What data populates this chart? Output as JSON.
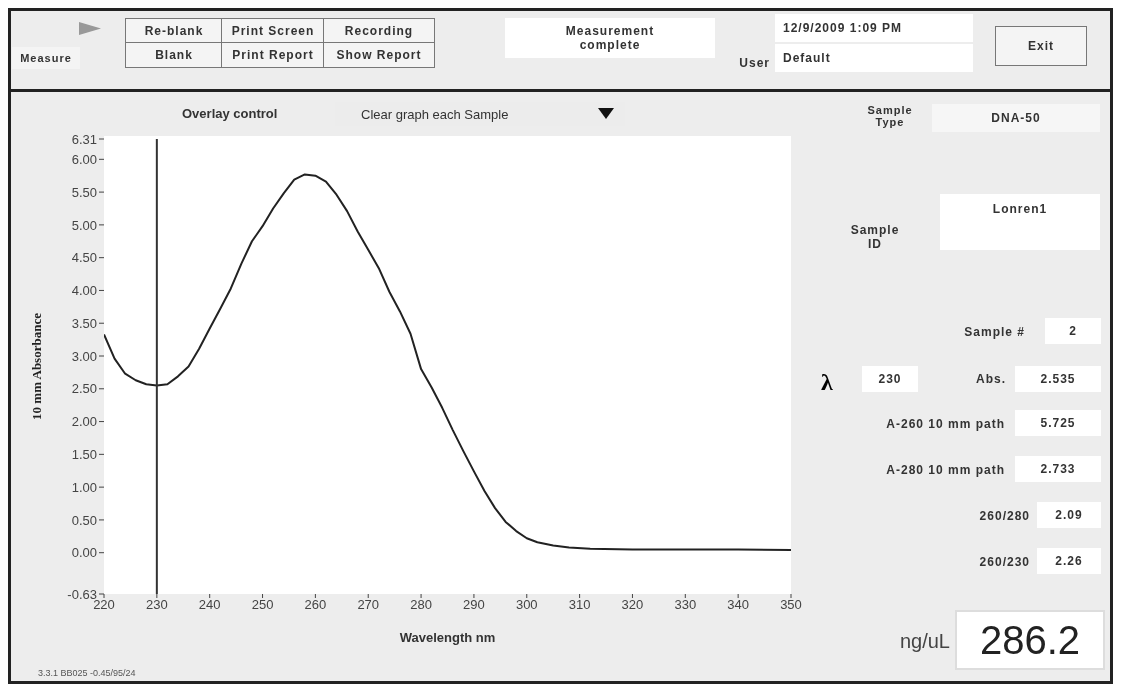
{
  "chart_data": [
    {
      "type": "line",
      "xlabel": "Wavelength nm",
      "ylabel": "10 mm Absorbance",
      "annotations": [
        "Overlay control",
        "Clear graph each Sample",
        "3.3.1 BB025 -0.45/95/24"
      ],
      "xlim": [
        220,
        350
      ],
      "xticks": [
        220,
        230,
        240,
        250,
        260,
        270,
        280,
        290,
        300,
        310,
        320,
        330,
        340,
        350
      ],
      "ylim": [
        -0.63,
        6.31
      ],
      "yticks": [
        {
          "value": -0.63,
          "label": "-0.63"
        },
        {
          "value": 0,
          "label": "0.00"
        },
        {
          "value": 0.5,
          "label": "0.50"
        },
        {
          "value": 1,
          "label": "1.00"
        },
        {
          "value": 1.5,
          "label": "1.50"
        },
        {
          "value": 2,
          "label": "2.00"
        },
        {
          "value": 2.5,
          "label": "2.50"
        },
        {
          "value": 3,
          "label": "3.00"
        },
        {
          "value": 3.5,
          "label": "3.50"
        },
        {
          "value": 4,
          "label": "4.00"
        },
        {
          "value": 4.5,
          "label": "4.50"
        },
        {
          "value": 5,
          "label": "5.00"
        },
        {
          "value": 5.5,
          "label": "5.50"
        },
        {
          "value": 6,
          "label": "6.00"
        },
        {
          "value": 6.31,
          "label": "6.31"
        }
      ],
      "grid": false,
      "ref_lines": [
        {
          "axis": "x",
          "value": 230,
          "color": "#333333"
        }
      ],
      "series": [
        {
          "color": "#222222",
          "x": [
            220,
            222,
            224,
            226,
            228,
            230,
            232,
            234,
            236,
            238,
            240,
            242,
            244,
            246,
            248,
            250,
            252,
            254,
            256,
            258,
            260,
            262,
            264,
            266,
            268,
            270,
            272,
            274,
            276,
            278,
            280,
            282,
            284,
            286,
            288,
            290,
            292,
            294,
            296,
            298,
            300,
            302,
            305,
            308,
            312,
            320,
            330,
            340,
            350
          ],
          "values": [
            3.33,
            2.96,
            2.73,
            2.63,
            2.57,
            2.55,
            2.57,
            2.69,
            2.84,
            3.11,
            3.42,
            3.72,
            4.03,
            4.41,
            4.75,
            4.98,
            5.25,
            5.48,
            5.69,
            5.77,
            5.75,
            5.66,
            5.46,
            5.21,
            4.9,
            4.62,
            4.34,
            3.98,
            3.68,
            3.34,
            2.8,
            2.52,
            2.21,
            1.87,
            1.55,
            1.24,
            0.94,
            0.68,
            0.47,
            0.33,
            0.22,
            0.16,
            0.11,
            0.08,
            0.06,
            0.05,
            0.05,
            0.05,
            0.04
          ]
        }
      ]
    },
    {
      "type": "other",
      "annotations": [
        "Measure",
        "Re-blank",
        "Blank",
        "Print Screen",
        "Print Report",
        "Recording",
        "Show Report",
        "Measurement complete",
        "User",
        "12/9/2009  1:09 PM",
        "Default",
        "Exit",
        "Sample Type",
        "DNA-50",
        "Sample ID",
        "Lonren1",
        "Sample #",
        "2",
        "λ",
        "230",
        "Abs.",
        "2.535",
        "A-260 10 mm path",
        "5.725",
        "A-280 10 mm path",
        "2.733",
        "260/280",
        "2.09",
        "260/230",
        "2.26",
        "ng/uL",
        "286.2"
      ]
    }
  ]
}
